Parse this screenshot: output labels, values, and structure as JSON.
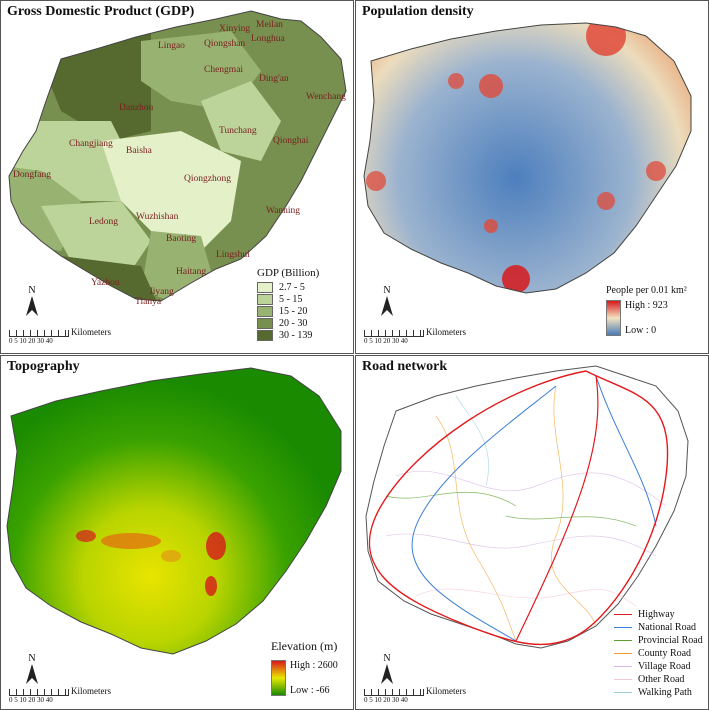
{
  "panels": {
    "gdp": {
      "title": "Gross Domestic Product (GDP)",
      "legend_title": "GDP (Billion)",
      "classes": [
        {
          "label": "2.7 - 5",
          "color": "#e4f0c8"
        },
        {
          "label": "5 - 15",
          "color": "#bcd39a"
        },
        {
          "label": "15 - 20",
          "color": "#98b272"
        },
        {
          "label": "20 - 30",
          "color": "#78904f"
        },
        {
          "label": "30 - 139",
          "color": "#56692f"
        }
      ],
      "cities": [
        "Xinying",
        "Meilan",
        "Lingao",
        "Qiongshan",
        "Longhua",
        "Chengmai",
        "Ding'an",
        "Wenchang",
        "Danzhou",
        "Changjiang",
        "Baisha",
        "Tunchang",
        "Qionghai",
        "Dongfang",
        "Qiongzhong",
        "Wanning",
        "Ledong",
        "Wuzhishan",
        "Baoting",
        "Lingshui",
        "Yazhou",
        "Haitang",
        "Jiyang",
        "Tianya"
      ]
    },
    "population": {
      "title": "Population density",
      "legend_title": "People per 0.01 km²",
      "high": "High : 923",
      "low": "Low : 0",
      "colors": {
        "high": "#d7191c",
        "mid": "#f3e3c0",
        "low": "#4a7bb7"
      }
    },
    "topography": {
      "title": "Topography",
      "legend_title": "Elevation (m)",
      "high": "High : 2600",
      "low": "Low : -66",
      "colors": {
        "high": "#d7191c",
        "mid": "#e8e800",
        "low": "#1a8a00"
      }
    },
    "road": {
      "title": "Road network",
      "classes": [
        {
          "label": "Highway",
          "color": "#e31a1c"
        },
        {
          "label": "National Road",
          "color": "#3b7fd6"
        },
        {
          "label": "Provincial Road",
          "color": "#5aa02c"
        },
        {
          "label": "County Road",
          "color": "#f0a030"
        },
        {
          "label": "Village Road",
          "color": "#d9b8e6"
        },
        {
          "label": "Other Road",
          "color": "#f4c6dc"
        },
        {
          "label": "Walking Path",
          "color": "#9ccfe0"
        }
      ]
    }
  },
  "common": {
    "north": "N",
    "scale_ticks": "0 5 10   20   30   40",
    "scale_unit": "Kilometers"
  }
}
